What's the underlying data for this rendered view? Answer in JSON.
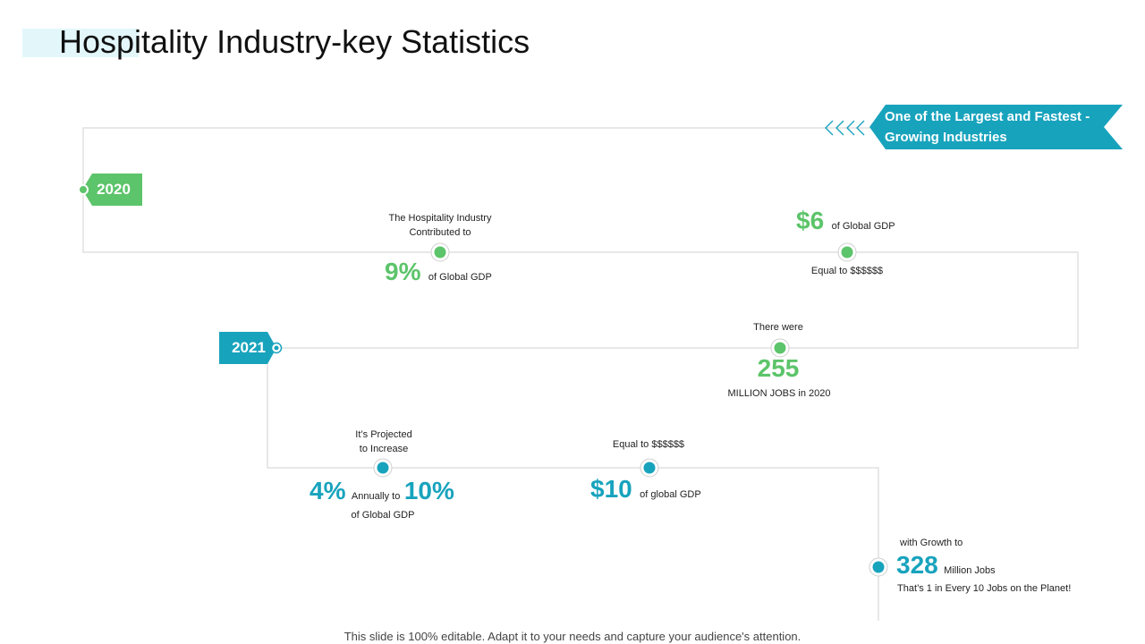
{
  "title": "Hospitality Industry-key Statistics",
  "banner": {
    "line1": "One of the Largest and Fastest -",
    "line2": "Growing Industries"
  },
  "years": {
    "y2020": "2020",
    "y2021": "2021"
  },
  "stats": {
    "hospitality": {
      "intro_line1": "The Hospitality Industry",
      "intro_line2": "Contributed to",
      "value": "9%",
      "unit": "of Global GDP"
    },
    "six": {
      "value": "$6",
      "unit": "of Global GDP",
      "note": "Equal to $$$$$$"
    },
    "jobs2020": {
      "intro": "There were",
      "value": "255",
      "unit": "MILLION JOBS in 2020"
    },
    "projected": {
      "intro_line1": "It’s Projected",
      "intro_line2": "to Increase",
      "value_a": "4%",
      "mid": "Annually to",
      "value_b": "10%",
      "unit": "of Global GDP"
    },
    "ten": {
      "intro": "Equal to $$$$$$",
      "value": "$10",
      "unit": "of global GDP"
    },
    "growth": {
      "intro": "with Growth to",
      "value": "328",
      "unit": "Million Jobs",
      "note": "That’s 1 in Every 10 Jobs on the Planet!"
    }
  },
  "footer": "This slide is 100% editable. Adapt it to your needs and capture your audience's attention.",
  "colors": {
    "green": "#5cc46a",
    "teal": "#18a3bd",
    "line": "#d9d9d9"
  }
}
